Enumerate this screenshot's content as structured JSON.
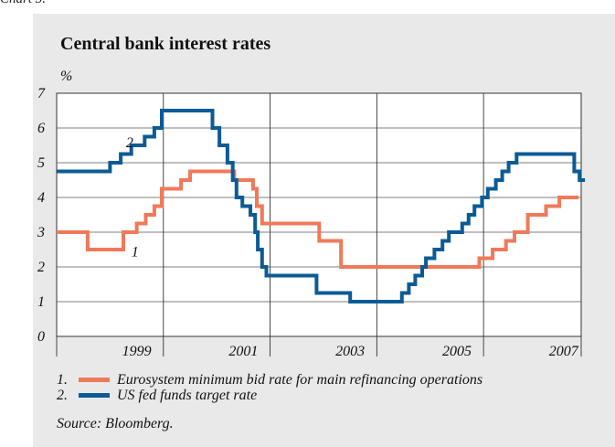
{
  "caption": "Chart 5.",
  "chart_data": {
    "type": "line",
    "title": "Central bank interest rates",
    "ylabel": "%",
    "ylim": [
      0,
      7
    ],
    "yticks": [
      0,
      1,
      2,
      3,
      4,
      5,
      6,
      7
    ],
    "xlim": [
      1998.0,
      2007.83
    ],
    "xticks": [
      "1999",
      "2001",
      "2003",
      "2005",
      "2007"
    ],
    "grid": true,
    "series": [
      {
        "name": "Eurosystem minimum bid rate for main refinancing operations",
        "number": "1",
        "color": "#f0795a",
        "points": [
          [
            1998.0,
            3.0
          ],
          [
            1998.58,
            3.0
          ],
          [
            1998.58,
            2.5
          ],
          [
            1999.25,
            2.5
          ],
          [
            1999.25,
            3.0
          ],
          [
            1999.5,
            3.0
          ],
          [
            1999.5,
            3.25
          ],
          [
            1999.67,
            3.25
          ],
          [
            1999.67,
            3.5
          ],
          [
            1999.83,
            3.5
          ],
          [
            1999.83,
            3.75
          ],
          [
            1999.97,
            3.75
          ],
          [
            1999.97,
            4.25
          ],
          [
            2000.33,
            4.25
          ],
          [
            2000.33,
            4.5
          ],
          [
            2000.5,
            4.5
          ],
          [
            2000.5,
            4.75
          ],
          [
            2001.33,
            4.75
          ],
          [
            2001.33,
            4.5
          ],
          [
            2001.68,
            4.5
          ],
          [
            2001.68,
            4.25
          ],
          [
            2001.75,
            4.25
          ],
          [
            2001.75,
            3.75
          ],
          [
            2001.85,
            3.75
          ],
          [
            2001.85,
            3.25
          ],
          [
            2002.92,
            3.25
          ],
          [
            2002.92,
            2.75
          ],
          [
            2003.33,
            2.75
          ],
          [
            2003.33,
            2.0
          ],
          [
            2005.92,
            2.0
          ],
          [
            2005.92,
            2.25
          ],
          [
            2006.17,
            2.25
          ],
          [
            2006.17,
            2.5
          ],
          [
            2006.42,
            2.5
          ],
          [
            2006.42,
            2.75
          ],
          [
            2006.58,
            2.75
          ],
          [
            2006.58,
            3.0
          ],
          [
            2006.83,
            3.0
          ],
          [
            2006.83,
            3.5
          ],
          [
            2007.17,
            3.5
          ],
          [
            2007.17,
            3.75
          ],
          [
            2007.42,
            3.75
          ],
          [
            2007.42,
            4.0
          ],
          [
            2007.78,
            4.0
          ]
        ],
        "label_at": [
          1999.4,
          2.3
        ]
      },
      {
        "name": "US fed funds target rate",
        "number": "2",
        "color": "#0b5b96",
        "points": [
          [
            1998.0,
            4.75
          ],
          [
            1999.0,
            4.75
          ],
          [
            1999.0,
            5.0
          ],
          [
            1999.2,
            5.0
          ],
          [
            1999.2,
            5.25
          ],
          [
            1999.4,
            5.25
          ],
          [
            1999.4,
            5.5
          ],
          [
            1999.65,
            5.5
          ],
          [
            1999.65,
            5.75
          ],
          [
            1999.83,
            5.75
          ],
          [
            1999.83,
            6.0
          ],
          [
            1999.97,
            6.0
          ],
          [
            1999.97,
            6.5
          ],
          [
            2000.92,
            6.5
          ],
          [
            2000.92,
            6.0
          ],
          [
            2001.05,
            6.0
          ],
          [
            2001.05,
            5.5
          ],
          [
            2001.2,
            5.5
          ],
          [
            2001.2,
            5.0
          ],
          [
            2001.3,
            5.0
          ],
          [
            2001.3,
            4.5
          ],
          [
            2001.37,
            4.5
          ],
          [
            2001.37,
            4.0
          ],
          [
            2001.48,
            4.0
          ],
          [
            2001.48,
            3.75
          ],
          [
            2001.63,
            3.75
          ],
          [
            2001.63,
            3.5
          ],
          [
            2001.72,
            3.5
          ],
          [
            2001.72,
            3.0
          ],
          [
            2001.77,
            3.0
          ],
          [
            2001.77,
            2.5
          ],
          [
            2001.85,
            2.5
          ],
          [
            2001.85,
            2.0
          ],
          [
            2001.93,
            2.0
          ],
          [
            2001.93,
            1.75
          ],
          [
            2002.87,
            1.75
          ],
          [
            2002.87,
            1.25
          ],
          [
            2003.5,
            1.25
          ],
          [
            2003.5,
            1.0
          ],
          [
            2004.47,
            1.0
          ],
          [
            2004.47,
            1.25
          ],
          [
            2004.6,
            1.25
          ],
          [
            2004.6,
            1.5
          ],
          [
            2004.72,
            1.5
          ],
          [
            2004.72,
            1.75
          ],
          [
            2004.85,
            1.75
          ],
          [
            2004.85,
            2.0
          ],
          [
            2004.92,
            2.0
          ],
          [
            2004.92,
            2.25
          ],
          [
            2005.08,
            2.25
          ],
          [
            2005.08,
            2.5
          ],
          [
            2005.23,
            2.5
          ],
          [
            2005.23,
            2.75
          ],
          [
            2005.35,
            2.75
          ],
          [
            2005.35,
            3.0
          ],
          [
            2005.6,
            3.0
          ],
          [
            2005.6,
            3.25
          ],
          [
            2005.72,
            3.25
          ],
          [
            2005.72,
            3.5
          ],
          [
            2005.83,
            3.5
          ],
          [
            2005.83,
            3.75
          ],
          [
            2005.97,
            3.75
          ],
          [
            2005.97,
            4.0
          ],
          [
            2006.08,
            4.0
          ],
          [
            2006.08,
            4.25
          ],
          [
            2006.23,
            4.25
          ],
          [
            2006.23,
            4.5
          ],
          [
            2006.35,
            4.5
          ],
          [
            2006.35,
            4.75
          ],
          [
            2006.47,
            4.75
          ],
          [
            2006.47,
            5.0
          ],
          [
            2006.62,
            5.0
          ],
          [
            2006.62,
            5.25
          ],
          [
            2007.7,
            5.25
          ],
          [
            2007.7,
            4.75
          ],
          [
            2007.8,
            4.75
          ],
          [
            2007.8,
            4.5
          ],
          [
            2007.9,
            4.5
          ]
        ],
        "label_at": [
          1999.3,
          5.45
        ]
      }
    ],
    "legend": "bottom"
  },
  "legend": [
    {
      "number": "1.",
      "text": "Eurosystem minimum bid rate for main refinancing operations",
      "color": "#f0795a"
    },
    {
      "number": "2.",
      "text": "US fed funds target rate",
      "color": "#0b5b96"
    }
  ],
  "source": "Source: Bloomberg."
}
